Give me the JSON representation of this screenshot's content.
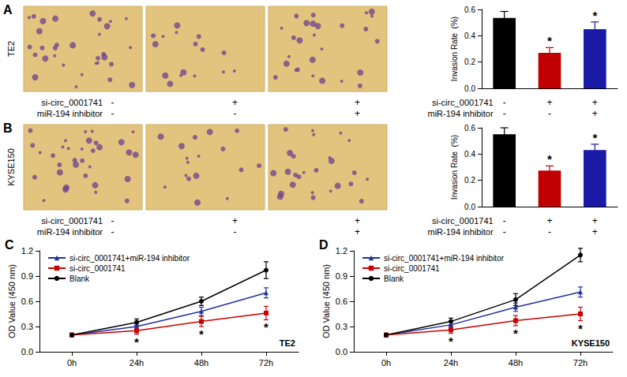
{
  "chart_data": [
    {
      "type": "bar",
      "panel": "A",
      "row_label": "TE2",
      "categories": [
        null,
        null,
        null
      ],
      "values": [
        0.535,
        0.27,
        0.45
      ],
      "errors": [
        0.05,
        0.04,
        0.055
      ],
      "colors": [
        "#000000",
        "#c00000",
        "#1a1aa6"
      ],
      "ylabel": "Invasion Rate  (%)",
      "ylim": [
        0,
        0.6
      ],
      "yticks": [
        {
          "value": 0,
          "label": "0.0"
        },
        0.2,
        0.4,
        0.6
      ],
      "grid": false,
      "treatments": [
        {
          "name": "si-circ_0001741",
          "marks": [
            "-",
            "+",
            "+"
          ]
        },
        {
          "name": "miR-194 inhibitor",
          "marks": [
            "-",
            "-",
            "+"
          ]
        }
      ],
      "annotations": [
        {
          "index": 1,
          "text": "*"
        },
        {
          "index": 2,
          "text": "*"
        }
      ]
    },
    {
      "type": "bar",
      "panel": "B",
      "row_label": "KYSE150",
      "categories": [
        null,
        null,
        null
      ],
      "values": [
        0.55,
        0.275,
        0.43
      ],
      "errors": [
        0.05,
        0.035,
        0.045
      ],
      "colors": [
        "#000000",
        "#c00000",
        "#1a1aa6"
      ],
      "ylabel": "Invasion Rate  (%)",
      "ylim": [
        0,
        0.6
      ],
      "yticks": [
        {
          "value": 0,
          "label": "0.0"
        },
        0.2,
        0.4,
        0.6
      ],
      "grid": false,
      "treatments": [
        {
          "name": "si-circ_0001741",
          "marks": [
            "-",
            "+",
            "+"
          ]
        },
        {
          "name": "miR-194 inhibitor",
          "marks": [
            "-",
            "-",
            "+"
          ]
        }
      ],
      "annotations": [
        {
          "index": 1,
          "text": "*"
        },
        {
          "index": 2,
          "text": "*"
        }
      ]
    },
    {
      "type": "line",
      "panel": "C",
      "subtitle": "TE2",
      "categories": [
        "0h",
        "24h",
        "48h",
        "72h"
      ],
      "ylabel": "OD Value (450 nm)",
      "ylim": [
        0,
        1.2
      ],
      "yticks": [
        {
          "value": 0,
          "label": "0.0"
        },
        0.3,
        0.6,
        0.9,
        1.2
      ],
      "grid": false,
      "legend": "top-left",
      "series": [
        {
          "name": "si-circ_0001741+miR-194 inhibitor",
          "color": "#1f2fa0",
          "marker": "triangle",
          "values": [
            0.2,
            0.3,
            0.48,
            0.7
          ],
          "errors": [
            0.02,
            0.03,
            0.05,
            0.06
          ]
        },
        {
          "name": "si-circ_0001741",
          "color": "#cc0000",
          "marker": "square",
          "values": [
            0.2,
            0.25,
            0.36,
            0.46
          ],
          "errors": [
            0.02,
            0.04,
            0.06,
            0.08
          ]
        },
        {
          "name": "Blank",
          "color": "#000000",
          "marker": "circle",
          "values": [
            0.2,
            0.35,
            0.6,
            0.97
          ],
          "errors": [
            0.02,
            0.04,
            0.05,
            0.1
          ]
        }
      ],
      "annotations": [
        {
          "index": 1,
          "text": "*"
        },
        {
          "index": 2,
          "text": "*"
        },
        {
          "index": 3,
          "text": "*"
        }
      ]
    },
    {
      "type": "line",
      "panel": "D",
      "subtitle": "KYSE150",
      "categories": [
        "0h",
        "24h",
        "48h",
        "72h"
      ],
      "ylabel": "OD Value (450 nm)",
      "ylim": [
        0,
        1.2
      ],
      "yticks": [
        {
          "value": 0,
          "label": "0.0"
        },
        0.3,
        0.6,
        0.9,
        1.2
      ],
      "grid": false,
      "legend": "top-left",
      "series": [
        {
          "name": "si-circ_0001741+miR-194 inhibitor",
          "color": "#1f2fa0",
          "marker": "triangle",
          "values": [
            0.2,
            0.32,
            0.53,
            0.71
          ],
          "errors": [
            0.02,
            0.03,
            0.05,
            0.06
          ]
        },
        {
          "name": "si-circ_0001741",
          "color": "#cc0000",
          "marker": "square",
          "values": [
            0.2,
            0.26,
            0.37,
            0.45
          ],
          "errors": [
            0.02,
            0.04,
            0.06,
            0.08
          ]
        },
        {
          "name": "Blank",
          "color": "#000000",
          "marker": "circle",
          "values": [
            0.2,
            0.36,
            0.62,
            1.15
          ],
          "errors": [
            0.02,
            0.04,
            0.07,
            0.08
          ]
        }
      ],
      "annotations": [
        {
          "index": 1,
          "text": "*"
        },
        {
          "index": 2,
          "text": "*"
        },
        {
          "index": 3,
          "text": "*"
        }
      ]
    }
  ]
}
